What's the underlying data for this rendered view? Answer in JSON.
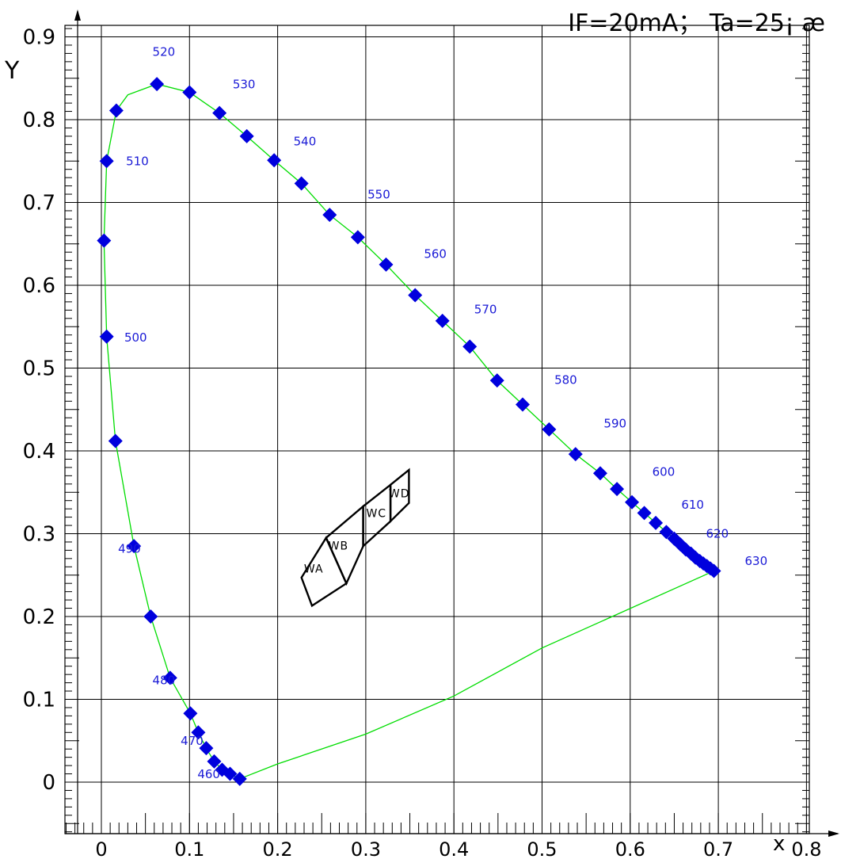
{
  "chart_data": {
    "type": "scatter",
    "title": "",
    "conditions": "IF=20mA； Ta=25¡ æ",
    "xlabel": "x",
    "ylabel": "Y",
    "xlim": [
      0,
      0.8
    ],
    "ylim": [
      0,
      0.9
    ],
    "x_ticks": [
      "0",
      "0.1",
      "0.2",
      "0.3",
      "0.4",
      "0.5",
      "0.6",
      "0.7",
      "0.8"
    ],
    "y_ticks": [
      "0",
      "0.1",
      "0.2",
      "0.3",
      "0.4",
      "0.5",
      "0.6",
      "0.7",
      "0.8",
      "0.9"
    ],
    "grid": true,
    "colors": {
      "locus": "#00dd00",
      "marker": "#0000dd",
      "label": "#1a1ad6",
      "bins": "#000000"
    },
    "series": [
      {
        "type": "scatter",
        "points": [
          [
            0.157,
            0.004
          ],
          [
            0.146,
            0.01
          ],
          [
            0.137,
            0.015
          ],
          [
            0.128,
            0.025
          ],
          [
            0.119,
            0.041
          ],
          [
            0.11,
            0.06
          ],
          [
            0.101,
            0.083
          ],
          [
            0.078,
            0.126
          ],
          [
            0.056,
            0.2
          ],
          [
            0.037,
            0.285
          ],
          [
            0.016,
            0.412
          ],
          [
            0.006,
            0.538
          ],
          [
            0.003,
            0.654
          ],
          [
            0.006,
            0.75
          ],
          [
            0.017,
            0.811
          ],
          [
            0.063,
            0.843
          ],
          [
            0.1,
            0.833
          ],
          [
            0.134,
            0.808
          ],
          [
            0.165,
            0.78
          ],
          [
            0.196,
            0.751
          ],
          [
            0.227,
            0.723
          ],
          [
            0.259,
            0.685
          ],
          [
            0.291,
            0.658
          ],
          [
            0.323,
            0.625
          ],
          [
            0.356,
            0.588
          ],
          [
            0.387,
            0.557
          ],
          [
            0.418,
            0.526
          ],
          [
            0.449,
            0.485
          ],
          [
            0.478,
            0.456
          ],
          [
            0.508,
            0.426
          ],
          [
            0.538,
            0.396
          ],
          [
            0.566,
            0.373
          ],
          [
            0.585,
            0.354
          ],
          [
            0.602,
            0.338
          ],
          [
            0.616,
            0.325
          ],
          [
            0.629,
            0.313
          ],
          [
            0.641,
            0.302
          ],
          [
            0.65,
            0.294
          ],
          [
            0.657,
            0.287
          ],
          [
            0.663,
            0.281
          ],
          [
            0.669,
            0.276
          ],
          [
            0.674,
            0.271
          ],
          [
            0.679,
            0.267
          ],
          [
            0.683,
            0.264
          ],
          [
            0.687,
            0.261
          ],
          [
            0.691,
            0.258
          ],
          [
            0.695,
            0.255
          ]
        ]
      },
      {
        "type": "line",
        "points": [
          [
            0.157,
            0.004
          ],
          [
            0.146,
            0.01
          ],
          [
            0.137,
            0.015
          ],
          [
            0.128,
            0.025
          ],
          [
            0.119,
            0.041
          ],
          [
            0.11,
            0.06
          ],
          [
            0.101,
            0.083
          ],
          [
            0.078,
            0.126
          ],
          [
            0.056,
            0.2
          ],
          [
            0.037,
            0.285
          ],
          [
            0.016,
            0.412
          ],
          [
            0.006,
            0.538
          ],
          [
            0.003,
            0.654
          ],
          [
            0.006,
            0.75
          ],
          [
            0.017,
            0.811
          ],
          [
            0.03,
            0.83
          ],
          [
            0.063,
            0.843
          ],
          [
            0.1,
            0.833
          ],
          [
            0.134,
            0.808
          ],
          [
            0.165,
            0.78
          ],
          [
            0.196,
            0.751
          ],
          [
            0.227,
            0.723
          ],
          [
            0.259,
            0.685
          ],
          [
            0.291,
            0.658
          ],
          [
            0.323,
            0.625
          ],
          [
            0.356,
            0.588
          ],
          [
            0.387,
            0.557
          ],
          [
            0.418,
            0.526
          ],
          [
            0.449,
            0.485
          ],
          [
            0.478,
            0.456
          ],
          [
            0.508,
            0.426
          ],
          [
            0.538,
            0.396
          ],
          [
            0.566,
            0.373
          ],
          [
            0.585,
            0.354
          ],
          [
            0.602,
            0.338
          ],
          [
            0.616,
            0.325
          ],
          [
            0.629,
            0.313
          ],
          [
            0.641,
            0.302
          ],
          [
            0.65,
            0.294
          ],
          [
            0.657,
            0.287
          ],
          [
            0.663,
            0.281
          ],
          [
            0.669,
            0.276
          ],
          [
            0.674,
            0.271
          ],
          [
            0.679,
            0.267
          ],
          [
            0.683,
            0.264
          ],
          [
            0.687,
            0.261
          ],
          [
            0.691,
            0.258
          ],
          [
            0.695,
            0.255
          ],
          [
            0.5,
            0.162
          ],
          [
            0.4,
            0.104
          ],
          [
            0.3,
            0.058
          ],
          [
            0.2,
            0.022
          ],
          [
            0.157,
            0.004
          ]
        ]
      }
    ],
    "wavelength_labels": [
      {
        "text": "460",
        "x": 0.109,
        "y": 0.005
      },
      {
        "text": "470",
        "x": 0.09,
        "y": 0.045
      },
      {
        "text": "480",
        "x": 0.058,
        "y": 0.118
      },
      {
        "text": "490",
        "x": 0.019,
        "y": 0.277
      },
      {
        "text": "500",
        "x": 0.026,
        "y": 0.532
      },
      {
        "text": "510",
        "x": 0.028,
        "y": 0.745
      },
      {
        "text": "520",
        "x": 0.058,
        "y": 0.877
      },
      {
        "text": "530",
        "x": 0.149,
        "y": 0.838
      },
      {
        "text": "540",
        "x": 0.218,
        "y": 0.769
      },
      {
        "text": "550",
        "x": 0.302,
        "y": 0.705
      },
      {
        "text": "560",
        "x": 0.366,
        "y": 0.633
      },
      {
        "text": "570",
        "x": 0.423,
        "y": 0.566
      },
      {
        "text": "580",
        "x": 0.514,
        "y": 0.481
      },
      {
        "text": "590",
        "x": 0.57,
        "y": 0.428
      },
      {
        "text": "600",
        "x": 0.625,
        "y": 0.37
      },
      {
        "text": "610",
        "x": 0.658,
        "y": 0.33
      },
      {
        "text": "620",
        "x": 0.686,
        "y": 0.295
      },
      {
        "text": "630",
        "x": 0.73,
        "y": 0.262
      }
    ],
    "bins": [
      {
        "label": "WA",
        "polygon": [
          [
            0.227,
            0.247
          ],
          [
            0.255,
            0.295
          ],
          [
            0.278,
            0.24
          ],
          [
            0.239,
            0.213
          ]
        ],
        "label_at": [
          0.241,
          0.253
        ]
      },
      {
        "label": "WB",
        "polygon": [
          [
            0.255,
            0.295
          ],
          [
            0.297,
            0.333
          ],
          [
            0.297,
            0.285
          ],
          [
            0.278,
            0.24
          ]
        ],
        "label_at": [
          0.269,
          0.281
        ]
      },
      {
        "label": "WC",
        "polygon": [
          [
            0.297,
            0.333
          ],
          [
            0.328,
            0.359
          ],
          [
            0.328,
            0.315
          ],
          [
            0.297,
            0.285
          ]
        ],
        "label_at": [
          0.312,
          0.32
        ]
      },
      {
        "label": "WD",
        "polygon": [
          [
            0.328,
            0.359
          ],
          [
            0.349,
            0.377
          ],
          [
            0.349,
            0.337
          ],
          [
            0.328,
            0.315
          ]
        ],
        "label_at": [
          0.338,
          0.344
        ]
      }
    ]
  }
}
